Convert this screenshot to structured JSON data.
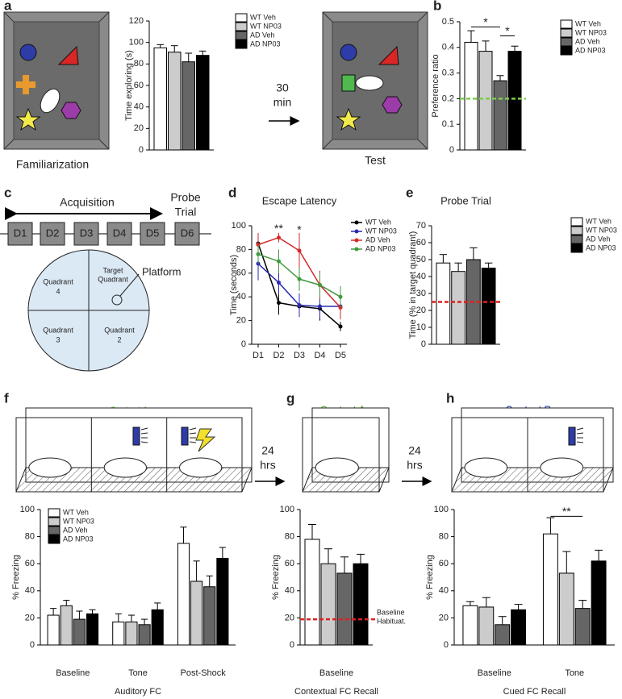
{
  "panel_letters": [
    "a",
    "b",
    "c",
    "d",
    "e",
    "f",
    "g",
    "h"
  ],
  "schematics": {
    "familiarization": "Familiarization",
    "test": "Test",
    "delay_1": [
      "30",
      "min"
    ],
    "acquisition": "Acquisition",
    "probe_trial": [
      "Probe",
      "Trial"
    ],
    "days": [
      "D1",
      "D2",
      "D3",
      "D4",
      "D5",
      "D6"
    ],
    "quadrant_4": [
      "Quadrant",
      "4"
    ],
    "target_quadrant": [
      "Target",
      "Quadrant"
    ],
    "quadrant_3": [
      "Quadrant",
      "3"
    ],
    "quadrant_2": [
      "Quadrant",
      "2"
    ],
    "platform": "Platform",
    "context_f": "Context A",
    "context_g": "Context A",
    "context_h": "Context B",
    "delay_2": [
      "24",
      "hrs"
    ],
    "delay_3": [
      "24",
      "hrs"
    ]
  },
  "chart_data": [
    {
      "type": "bar",
      "ylabel": "Time exploring (s)",
      "categories": [
        null
      ],
      "series": [
        {
          "name": "WT Veh",
          "color": "#ffffff",
          "values": [
            95
          ],
          "errors": [
            3
          ]
        },
        {
          "name": "WT NP03",
          "color": "#cccccc",
          "values": [
            91
          ],
          "errors": [
            6
          ]
        },
        {
          "name": "AD Veh",
          "color": "#666666",
          "values": [
            82
          ],
          "errors": [
            8
          ]
        },
        {
          "name": "AD NP03",
          "color": "#000000",
          "values": [
            88
          ],
          "errors": [
            4
          ]
        }
      ],
      "ylim": [
        0,
        120
      ],
      "yticks": [
        0,
        20,
        40,
        60,
        80,
        100,
        120
      ],
      "legend": "outside right"
    },
    {
      "type": "bar",
      "ylabel": "Preference ratio",
      "categories": [
        null
      ],
      "series": [
        {
          "name": "WT Veh",
          "color": "#ffffff",
          "values": [
            0.42
          ],
          "errors": [
            0.045
          ]
        },
        {
          "name": "WT NP03",
          "color": "#cccccc",
          "values": [
            0.385
          ],
          "errors": [
            0.04
          ]
        },
        {
          "name": "AD Veh",
          "color": "#666666",
          "values": [
            0.27
          ],
          "errors": [
            0.02
          ]
        },
        {
          "name": "AD NP03",
          "color": "#000000",
          "values": [
            0.385
          ],
          "errors": [
            0.02
          ]
        }
      ],
      "ylim": [
        0,
        0.5
      ],
      "yticks": [
        0,
        0.1,
        0.2,
        0.3,
        0.4,
        0.5
      ],
      "reference": {
        "value": 0.2,
        "color": "#7dcc4a"
      },
      "brackets": [
        {
          "text": "*",
          "from": 0,
          "to": 2,
          "y": 0.48
        },
        {
          "text": "*",
          "from": 2,
          "to": 3,
          "y": 0.445
        }
      ],
      "legend": "outside right"
    },
    {
      "type": "line",
      "title": "Escape Latency",
      "ylabel": "Time (seconds)",
      "categories": [
        "D1",
        "D2",
        "D3",
        "D4",
        "D5"
      ],
      "series": [
        {
          "name": "WT Veh",
          "color": "#000000",
          "values": [
            85,
            35,
            32,
            30,
            15
          ],
          "errors": [
            8,
            10,
            8,
            10,
            4
          ]
        },
        {
          "name": "WT NP03",
          "color": "#2b2bb0",
          "values": [
            68,
            52,
            33,
            32,
            32
          ],
          "errors": [
            14,
            10,
            10,
            10,
            10
          ]
        },
        {
          "name": "AD Veh",
          "color": "#d42a2a",
          "values": [
            84,
            90,
            79,
            50,
            31
          ],
          "errors": [
            10,
            4,
            15,
            12,
            10
          ]
        },
        {
          "name": "AD NP03",
          "color": "#3e9a3e",
          "values": [
            76,
            70,
            55,
            50,
            40
          ],
          "errors": [
            8,
            10,
            10,
            10,
            9
          ]
        }
      ],
      "ylim": [
        0,
        100
      ],
      "yticks": [
        0,
        20,
        40,
        60,
        80,
        100
      ],
      "annotations": [
        {
          "text": "**",
          "at": "D2",
          "y": 97
        },
        {
          "text": "*",
          "at": "D3",
          "y": 96
        }
      ],
      "legend": "upper right"
    },
    {
      "type": "bar",
      "title": "Probe Trial",
      "ylabel": "Time (% in target quadrant)",
      "categories": [
        null
      ],
      "series": [
        {
          "name": "WT Veh",
          "color": "#ffffff",
          "values": [
            48
          ],
          "errors": [
            5
          ]
        },
        {
          "name": "WT NP03",
          "color": "#cccccc",
          "values": [
            43
          ],
          "errors": [
            5
          ]
        },
        {
          "name": "AD Veh",
          "color": "#666666",
          "values": [
            50
          ],
          "errors": [
            7
          ]
        },
        {
          "name": "AD NP03",
          "color": "#000000",
          "values": [
            45
          ],
          "errors": [
            3
          ]
        }
      ],
      "ylim": [
        0,
        70
      ],
      "yticks": [
        0,
        10,
        20,
        30,
        40,
        50,
        60,
        70
      ],
      "reference": {
        "value": 25,
        "color": "#e02020"
      },
      "legend": "outside right"
    },
    {
      "type": "bar",
      "ylabel": "% Freezing",
      "xlabel": "Auditory FC",
      "categories": [
        "Baseline",
        "Tone",
        "Post-Shock"
      ],
      "series": [
        {
          "name": "WT Veh",
          "color": "#ffffff",
          "values": [
            22,
            17,
            75
          ],
          "errors": [
            5,
            6,
            12
          ]
        },
        {
          "name": "WT NP03",
          "color": "#cccccc",
          "values": [
            29,
            17,
            47
          ],
          "errors": [
            4,
            5,
            15
          ]
        },
        {
          "name": "AD Veh",
          "color": "#666666",
          "values": [
            19,
            15,
            43
          ],
          "errors": [
            6,
            4,
            8
          ]
        },
        {
          "name": "AD NP03",
          "color": "#000000",
          "values": [
            23,
            26,
            64
          ],
          "errors": [
            3,
            5,
            8
          ]
        }
      ],
      "ylim": [
        0,
        100
      ],
      "yticks": [
        0,
        20,
        40,
        60,
        80,
        100
      ],
      "legend": "upper left"
    },
    {
      "type": "bar",
      "ylabel": "% Freezing",
      "xlabel": "Contextual FC Recall",
      "categories": [
        "Baseline"
      ],
      "series": [
        {
          "color": "#ffffff",
          "values": [
            78
          ],
          "errors": [
            11
          ]
        },
        {
          "color": "#cccccc",
          "values": [
            60
          ],
          "errors": [
            11
          ]
        },
        {
          "color": "#666666",
          "values": [
            53
          ],
          "errors": [
            12
          ]
        },
        {
          "color": "#000000",
          "values": [
            60
          ],
          "errors": [
            7
          ]
        }
      ],
      "ylim": [
        0,
        100
      ],
      "yticks": [
        0,
        20,
        40,
        60,
        80,
        100
      ],
      "reference": {
        "value": 19,
        "color": "#e02020",
        "label": [
          "Baseline",
          "Habituat."
        ]
      }
    },
    {
      "type": "bar",
      "ylabel": "% Freezing",
      "xlabel": "Cued FC Recall",
      "categories": [
        "Baseline",
        "Tone"
      ],
      "series": [
        {
          "color": "#ffffff",
          "values": [
            29,
            82
          ],
          "errors": [
            3,
            12
          ]
        },
        {
          "color": "#cccccc",
          "values": [
            28,
            53
          ],
          "errors": [
            7,
            16
          ]
        },
        {
          "color": "#666666",
          "values": [
            15,
            27
          ],
          "errors": [
            6,
            6
          ]
        },
        {
          "color": "#000000",
          "values": [
            26,
            62
          ],
          "errors": [
            4,
            8
          ]
        }
      ],
      "ylim": [
        0,
        100
      ],
      "yticks": [
        0,
        20,
        40,
        60,
        80,
        100
      ],
      "brackets": [
        {
          "text": "**",
          "category": "Tone",
          "from": 0,
          "to": 2,
          "y": 95
        }
      ]
    }
  ]
}
